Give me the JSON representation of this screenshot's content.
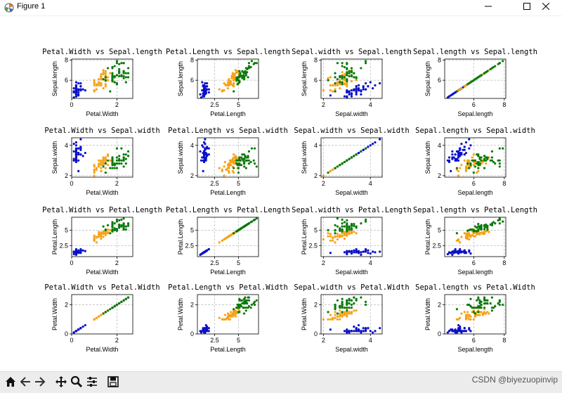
{
  "window": {
    "title": "Figure 1",
    "icons": {
      "app": "matplotlib-icon",
      "minimize": "minimize-icon",
      "maximize": "maximize-icon",
      "close": "close-icon"
    }
  },
  "toolbar": {
    "buttons": [
      "home-icon",
      "back-icon",
      "forward-icon",
      "pan-icon",
      "zoom-icon",
      "configure-subplots-icon",
      "save-icon"
    ],
    "watermark": "CSDN @biyezuopinvip"
  },
  "colors": {
    "setosa": "#0a10c8",
    "versicolor": "#f5a31a",
    "virginica": "#0b7a0b",
    "grid": "#b8b8b8"
  },
  "chart_data": [
    {
      "type": "scatter",
      "title": "Petal.Width vs Sepal.length",
      "xlabel": "Petal.Width",
      "ylabel": "Sepal.length",
      "xlim": [
        0,
        2.7
      ],
      "ylim": [
        4.2,
        8.1
      ],
      "xticks": [
        0,
        2
      ],
      "yticks": [
        6,
        8
      ],
      "xvar": "pw",
      "yvar": "sl"
    },
    {
      "type": "scatter",
      "title": "Petal.Length vs Sepal.length",
      "xlabel": "Petal.Length",
      "ylabel": "Sepal.length",
      "xlim": [
        0.7,
        7.1
      ],
      "ylim": [
        4.2,
        8.1
      ],
      "xticks": [
        2.5,
        5.0
      ],
      "yticks": [
        6,
        8
      ],
      "xvar": "pl",
      "yvar": "sl"
    },
    {
      "type": "scatter",
      "title": "Sepal.width vs Sepal.length",
      "xlabel": "Sepal.width",
      "ylabel": "Sepal.length",
      "xlim": [
        1.9,
        4.5
      ],
      "ylim": [
        4.2,
        8.1
      ],
      "xticks": [
        2,
        4
      ],
      "yticks": [
        6,
        8
      ],
      "xvar": "sw",
      "yvar": "sl"
    },
    {
      "type": "scatter",
      "title": "Sepal.length vs Sepal.length",
      "xlabel": "Sepal.length",
      "ylabel": "Sepal.length",
      "xlim": [
        4.1,
        8.1
      ],
      "ylim": [
        4.2,
        8.1
      ],
      "xticks": [
        6,
        8
      ],
      "yticks": [
        6,
        8
      ],
      "xvar": "sl",
      "yvar": "sl"
    },
    {
      "type": "scatter",
      "title": "Petal.Width vs Sepal.width",
      "xlabel": "Petal.Width",
      "ylabel": "Sepal.width",
      "xlim": [
        0,
        2.7
      ],
      "ylim": [
        1.9,
        4.5
      ],
      "xticks": [
        0,
        2
      ],
      "yticks": [
        2,
        4
      ],
      "xvar": "pw",
      "yvar": "sw"
    },
    {
      "type": "scatter",
      "title": "Petal.Length vs Sepal.width",
      "xlabel": "Petal.Length",
      "ylabel": "Sepal.width",
      "xlim": [
        0.7,
        7.1
      ],
      "ylim": [
        1.9,
        4.5
      ],
      "xticks": [
        2.5,
        5.0
      ],
      "yticks": [
        2,
        4
      ],
      "xvar": "pl",
      "yvar": "sw"
    },
    {
      "type": "scatter",
      "title": "Sepal.width vs Sepal.width",
      "xlabel": "Sepal.width",
      "ylabel": "Sepal.width",
      "xlim": [
        1.9,
        4.5
      ],
      "ylim": [
        1.9,
        4.5
      ],
      "xticks": [
        2,
        4
      ],
      "yticks": [
        2,
        4
      ],
      "xvar": "sw",
      "yvar": "sw"
    },
    {
      "type": "scatter",
      "title": "Sepal.length vs Sepal.width",
      "xlabel": "Sepal.length",
      "ylabel": "Sepal.width",
      "xlim": [
        4.1,
        8.1
      ],
      "ylim": [
        1.9,
        4.5
      ],
      "xticks": [
        6,
        8
      ],
      "yticks": [
        2,
        4
      ],
      "xvar": "sl",
      "yvar": "sw"
    },
    {
      "type": "scatter",
      "title": "Petal.Width vs Petal.Length",
      "xlabel": "Petal.Width",
      "ylabel": "Petal.Length",
      "xlim": [
        0,
        2.7
      ],
      "ylim": [
        0.7,
        7.1
      ],
      "xticks": [
        0,
        2
      ],
      "yticks": [
        2.5,
        5.0
      ],
      "xvar": "pw",
      "yvar": "pl"
    },
    {
      "type": "scatter",
      "title": "Petal.Length vs Petal.Length",
      "xlabel": "Petal.Length",
      "ylabel": "Petal.Length",
      "xlim": [
        0.7,
        7.1
      ],
      "ylim": [
        0.7,
        7.1
      ],
      "xticks": [
        2.5,
        5.0
      ],
      "yticks": [
        2.5,
        5.0
      ],
      "xvar": "pl",
      "yvar": "pl"
    },
    {
      "type": "scatter",
      "title": "Sepal.width vs Petal.Length",
      "xlabel": "Sepal.width",
      "ylabel": "Petal.Length",
      "xlim": [
        1.9,
        4.5
      ],
      "ylim": [
        0.7,
        7.1
      ],
      "xticks": [
        2,
        4
      ],
      "yticks": [
        2.5,
        5.0
      ],
      "xvar": "sw",
      "yvar": "pl"
    },
    {
      "type": "scatter",
      "title": "Sepal.length vs Petal.Length",
      "xlabel": "Sepal.length",
      "ylabel": "Petal.Length",
      "xlim": [
        4.1,
        8.1
      ],
      "ylim": [
        0.7,
        7.1
      ],
      "xticks": [
        6,
        8
      ],
      "yticks": [
        2.5,
        5.0
      ],
      "xvar": "sl",
      "yvar": "pl"
    },
    {
      "type": "scatter",
      "title": "Petal.Width vs Petal.Width",
      "xlabel": "Petal.Width",
      "ylabel": "Petal.Width",
      "xlim": [
        0,
        2.7
      ],
      "ylim": [
        0,
        2.7
      ],
      "xticks": [
        0,
        2
      ],
      "yticks": [
        0,
        2
      ],
      "xvar": "pw",
      "yvar": "pw"
    },
    {
      "type": "scatter",
      "title": "Petal.Length vs Petal.Width",
      "xlabel": "Petal.Length",
      "ylabel": "Petal.Width",
      "xlim": [
        0.7,
        7.1
      ],
      "ylim": [
        0,
        2.7
      ],
      "xticks": [
        2.5,
        5.0
      ],
      "yticks": [
        0,
        2
      ],
      "xvar": "pl",
      "yvar": "pw"
    },
    {
      "type": "scatter",
      "title": "Sepal.width vs Petal.Width",
      "xlabel": "Sepal.width",
      "ylabel": "Petal.Width",
      "xlim": [
        1.9,
        4.5
      ],
      "ylim": [
        0,
        2.7
      ],
      "xticks": [
        2,
        4
      ],
      "yticks": [
        0,
        2
      ],
      "xvar": "sw",
      "yvar": "pw"
    },
    {
      "type": "scatter",
      "title": "Sepal.length vs Petal.Width",
      "xlabel": "Sepal.length",
      "ylabel": "Petal.Width",
      "xlim": [
        4.1,
        8.1
      ],
      "ylim": [
        0,
        2.7
      ],
      "xticks": [
        6,
        8
      ],
      "yticks": [
        0,
        2
      ],
      "xvar": "sl",
      "yvar": "pw"
    }
  ],
  "series": {
    "setosa": {
      "sl": [
        5.1,
        4.9,
        4.7,
        4.6,
        5.0,
        5.4,
        4.6,
        5.0,
        4.4,
        4.9,
        5.4,
        4.8,
        4.8,
        4.3,
        5.8,
        5.7,
        5.4,
        5.1,
        5.7,
        5.1,
        5.4,
        5.1,
        4.6,
        5.1,
        4.8,
        5.0,
        5.0,
        5.2,
        5.2,
        4.7,
        4.8,
        5.4,
        5.2,
        5.5,
        4.9,
        5.0,
        5.5,
        4.9,
        4.4,
        5.1,
        5.0,
        4.5,
        4.4,
        5.0,
        5.1,
        4.8,
        5.1,
        4.6,
        5.3,
        5.0
      ],
      "sw": [
        3.5,
        3.0,
        3.2,
        3.1,
        3.6,
        3.9,
        3.4,
        3.4,
        2.9,
        3.1,
        3.7,
        3.4,
        3.0,
        3.0,
        4.0,
        4.4,
        3.9,
        3.5,
        3.8,
        3.8,
        3.4,
        3.7,
        3.6,
        3.3,
        3.4,
        3.0,
        3.4,
        3.5,
        3.4,
        3.2,
        3.1,
        3.4,
        4.1,
        4.2,
        3.1,
        3.2,
        3.5,
        3.6,
        3.0,
        3.4,
        3.5,
        2.3,
        3.2,
        3.5,
        3.8,
        3.0,
        3.8,
        3.2,
        3.7,
        3.3
      ],
      "pl": [
        1.4,
        1.4,
        1.3,
        1.5,
        1.4,
        1.7,
        1.4,
        1.5,
        1.4,
        1.5,
        1.5,
        1.6,
        1.4,
        1.1,
        1.2,
        1.5,
        1.3,
        1.4,
        1.7,
        1.5,
        1.7,
        1.5,
        1.0,
        1.7,
        1.9,
        1.6,
        1.6,
        1.5,
        1.4,
        1.6,
        1.6,
        1.5,
        1.5,
        1.4,
        1.5,
        1.2,
        1.3,
        1.4,
        1.3,
        1.5,
        1.3,
        1.3,
        1.3,
        1.6,
        1.9,
        1.4,
        1.6,
        1.4,
        1.5,
        1.4
      ],
      "pw": [
        0.2,
        0.2,
        0.2,
        0.2,
        0.2,
        0.4,
        0.3,
        0.2,
        0.2,
        0.1,
        0.2,
        0.2,
        0.1,
        0.1,
        0.2,
        0.4,
        0.4,
        0.3,
        0.3,
        0.3,
        0.2,
        0.4,
        0.2,
        0.5,
        0.2,
        0.2,
        0.4,
        0.2,
        0.2,
        0.2,
        0.2,
        0.4,
        0.1,
        0.2,
        0.2,
        0.2,
        0.2,
        0.1,
        0.2,
        0.2,
        0.3,
        0.3,
        0.2,
        0.6,
        0.4,
        0.3,
        0.2,
        0.2,
        0.2,
        0.2
      ]
    },
    "versicolor": {
      "sl": [
        7.0,
        6.4,
        6.9,
        5.5,
        6.5,
        5.7,
        6.3,
        4.9,
        6.6,
        5.2,
        5.0,
        5.9,
        6.0,
        6.1,
        5.6,
        6.7,
        5.6,
        5.8,
        6.2,
        5.6,
        5.9,
        6.1,
        6.3,
        6.1,
        6.4,
        6.6,
        6.8,
        6.7,
        6.0,
        5.7,
        5.5,
        5.5,
        5.8,
        6.0,
        5.4,
        6.0,
        6.7,
        6.3,
        5.6,
        5.5,
        5.5,
        6.1,
        5.8,
        5.0,
        5.6,
        5.7,
        5.7,
        6.2,
        5.1,
        5.7
      ],
      "sw": [
        3.2,
        3.2,
        3.1,
        2.3,
        2.8,
        2.8,
        3.3,
        2.4,
        2.9,
        2.7,
        2.0,
        3.0,
        2.2,
        2.9,
        2.9,
        3.1,
        3.0,
        2.7,
        2.2,
        2.5,
        3.2,
        2.8,
        2.5,
        2.8,
        2.9,
        3.0,
        2.8,
        3.0,
        2.9,
        2.6,
        2.4,
        2.4,
        2.7,
        2.7,
        3.0,
        3.4,
        3.1,
        2.3,
        3.0,
        2.5,
        2.6,
        3.0,
        2.6,
        2.3,
        2.7,
        3.0,
        2.9,
        2.9,
        2.5,
        2.8
      ],
      "pl": [
        4.7,
        4.5,
        4.9,
        4.0,
        4.6,
        4.5,
        4.7,
        3.3,
        4.6,
        3.9,
        3.5,
        4.2,
        4.0,
        4.7,
        3.6,
        4.4,
        4.5,
        4.1,
        4.5,
        3.9,
        4.8,
        4.0,
        4.9,
        4.7,
        4.3,
        4.4,
        4.8,
        5.0,
        4.5,
        3.5,
        3.8,
        3.7,
        3.9,
        5.1,
        4.5,
        4.5,
        4.7,
        4.4,
        4.1,
        4.0,
        4.4,
        4.6,
        4.0,
        3.3,
        4.2,
        4.2,
        4.2,
        4.3,
        3.0,
        4.1
      ],
      "pw": [
        1.4,
        1.5,
        1.5,
        1.3,
        1.5,
        1.3,
        1.6,
        1.0,
        1.3,
        1.4,
        1.0,
        1.5,
        1.0,
        1.4,
        1.3,
        1.4,
        1.5,
        1.0,
        1.5,
        1.1,
        1.8,
        1.3,
        1.5,
        1.2,
        1.3,
        1.4,
        1.4,
        1.7,
        1.5,
        1.0,
        1.1,
        1.0,
        1.2,
        1.6,
        1.5,
        1.6,
        1.5,
        1.3,
        1.3,
        1.3,
        1.2,
        1.4,
        1.2,
        1.0,
        1.3,
        1.2,
        1.3,
        1.3,
        1.1,
        1.3
      ]
    },
    "virginica": {
      "sl": [
        6.3,
        5.8,
        7.1,
        6.3,
        6.5,
        7.6,
        4.9,
        7.3,
        6.7,
        7.2,
        6.5,
        6.4,
        6.8,
        5.7,
        5.8,
        6.4,
        6.5,
        7.7,
        7.7,
        6.0,
        6.9,
        5.6,
        7.7,
        6.3,
        6.7,
        7.2,
        6.2,
        6.1,
        6.4,
        7.2,
        7.4,
        7.9,
        6.4,
        6.3,
        6.1,
        7.7,
        6.3,
        6.4,
        6.0,
        6.9,
        6.7,
        6.9,
        5.8,
        6.8,
        6.7,
        6.7,
        6.3,
        6.5,
        6.2,
        5.9
      ],
      "sw": [
        3.3,
        2.7,
        3.0,
        2.9,
        3.0,
        3.0,
        2.5,
        2.9,
        2.5,
        3.6,
        3.2,
        2.7,
        3.0,
        2.5,
        2.8,
        3.2,
        3.0,
        3.8,
        2.6,
        2.2,
        3.2,
        2.8,
        2.8,
        2.7,
        3.3,
        3.2,
        2.8,
        3.0,
        2.8,
        3.0,
        2.8,
        3.8,
        2.8,
        2.8,
        2.6,
        3.0,
        3.4,
        3.1,
        3.0,
        3.1,
        3.1,
        3.1,
        2.7,
        3.2,
        3.3,
        3.0,
        2.5,
        3.0,
        3.4,
        3.0
      ],
      "pl": [
        6.0,
        5.1,
        5.9,
        5.6,
        5.8,
        6.6,
        4.5,
        6.3,
        5.8,
        6.1,
        5.1,
        5.3,
        5.5,
        5.0,
        5.1,
        5.3,
        5.5,
        6.7,
        6.9,
        5.0,
        5.7,
        4.9,
        6.7,
        4.9,
        5.7,
        6.0,
        4.8,
        4.9,
        5.6,
        5.8,
        6.1,
        6.4,
        5.6,
        5.1,
        5.6,
        6.1,
        5.6,
        5.5,
        4.8,
        5.4,
        5.6,
        5.1,
        5.1,
        5.9,
        5.7,
        5.2,
        5.0,
        5.2,
        5.4,
        5.1
      ],
      "pw": [
        2.5,
        1.9,
        2.1,
        1.8,
        2.2,
        2.1,
        1.7,
        1.8,
        1.8,
        2.5,
        2.0,
        1.9,
        2.1,
        2.0,
        2.4,
        2.3,
        1.8,
        2.2,
        2.3,
        1.5,
        2.3,
        2.0,
        2.0,
        1.8,
        2.1,
        1.8,
        1.8,
        1.8,
        2.1,
        1.6,
        1.9,
        2.0,
        2.2,
        1.5,
        1.4,
        2.3,
        2.4,
        1.8,
        1.8,
        2.1,
        2.4,
        2.3,
        1.9,
        2.3,
        2.5,
        2.3,
        1.9,
        2.0,
        2.3,
        1.8
      ]
    }
  }
}
